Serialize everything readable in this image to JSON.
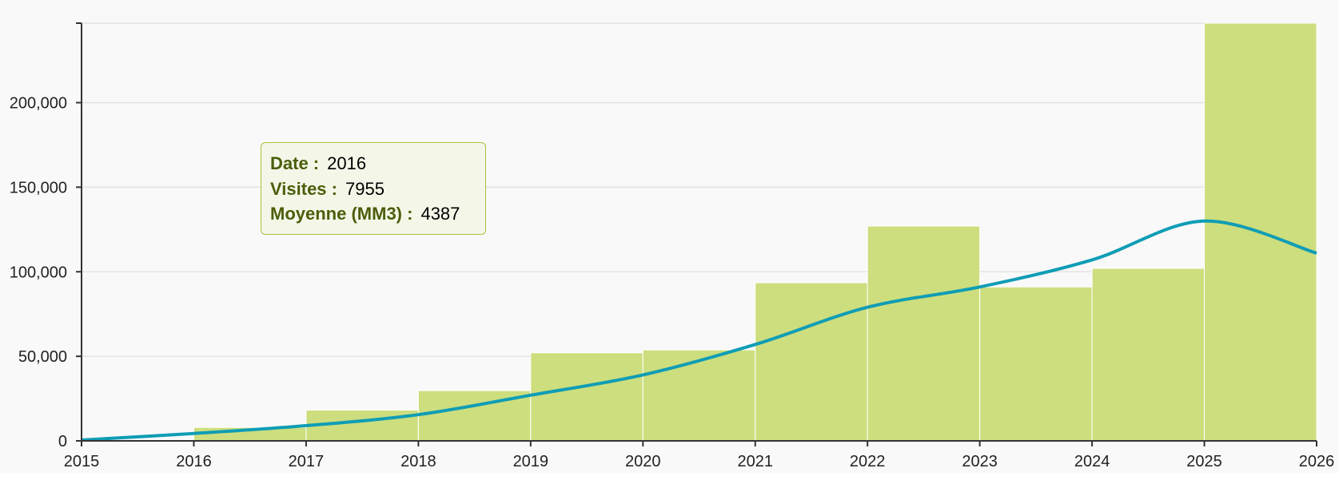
{
  "colors": {
    "bar": "#cdde7e",
    "bar_edge": "#ffffff",
    "line": "#0f9db5",
    "axis": "#333333",
    "grid": "#e3e3e3",
    "background": "#f9f9f9"
  },
  "chart_data": {
    "type": "bar",
    "x_ticks": [
      "2015",
      "2016",
      "2017",
      "2018",
      "2019",
      "2020",
      "2021",
      "2022",
      "2023",
      "2024",
      "2025",
      "2026"
    ],
    "y_ticks": [
      "0",
      "50,000",
      "100,000",
      "150,000",
      "200,000"
    ],
    "ylim": [
      0,
      247000
    ],
    "grid": true,
    "series": [
      {
        "type": "bar",
        "x": [
          2016,
          2017,
          2018,
          2019,
          2020,
          2021,
          2022,
          2023,
          2024,
          2025
        ],
        "values": [
          7955,
          18200,
          29700,
          52100,
          53800,
          93500,
          127000,
          91000,
          102000,
          247000
        ]
      },
      {
        "type": "line",
        "x": [
          2015,
          2016,
          2017,
          2018,
          2019,
          2020,
          2021,
          2022,
          2023,
          2024,
          2025,
          2026
        ],
        "values": [
          500,
          4387,
          9000,
          15500,
          27000,
          39000,
          57000,
          79000,
          91000,
          107000,
          130000,
          111000
        ]
      }
    ],
    "tooltip": {
      "rows": [
        {
          "label": "Date :",
          "value": "2016"
        },
        {
          "label": "Visites :",
          "value": "7955"
        },
        {
          "label": "Moyenne (MM3) :",
          "value": "4387"
        }
      ]
    }
  }
}
